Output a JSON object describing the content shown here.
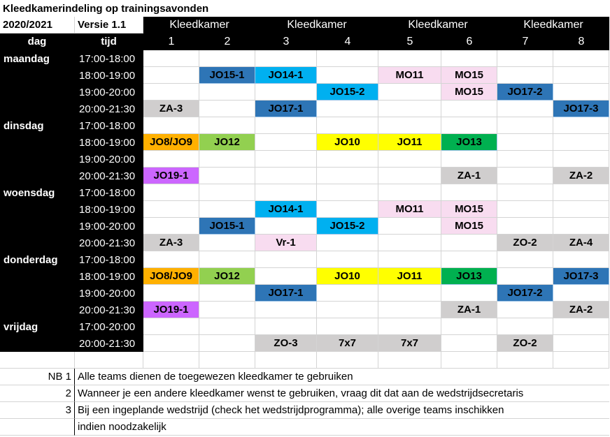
{
  "title": "Kleedkamerindeling op trainingsavonden",
  "season": "2020/2021",
  "version": "Versie 1.1",
  "col_day": "dag",
  "col_time": "tijd",
  "room_label": "Kleedkamer",
  "rooms": [
    "1",
    "2",
    "3",
    "4",
    "5",
    "6",
    "7",
    "8"
  ],
  "colors": {
    "grey": "#d0cece",
    "blue": "#2e75b6",
    "lightblue": "#00b0f0",
    "pink": "#f8dcf0",
    "orange": "#ffb000",
    "green_light": "#92d050",
    "yellow": "#ffff00",
    "green": "#00b050",
    "purple": "#cc66ff",
    "white": "#ffffff"
  },
  "schedule": [
    {
      "day": "maandag",
      "time": "17:00-18:00",
      "cells": []
    },
    {
      "day": "",
      "time": "18:00-19:00",
      "cells": [
        {
          "room": 2,
          "label": "JO15-1",
          "color": "blue"
        },
        {
          "room": 3,
          "label": "JO14-1",
          "color": "lightblue"
        },
        {
          "room": 5,
          "label": "MO11",
          "color": "pink"
        },
        {
          "room": 6,
          "label": "MO15",
          "color": "pink"
        }
      ]
    },
    {
      "day": "",
      "time": "19:00-20:00",
      "cells": [
        {
          "room": 4,
          "label": "JO15-2",
          "color": "lightblue"
        },
        {
          "room": 6,
          "label": "MO15",
          "color": "pink"
        },
        {
          "room": 7,
          "label": "JO17-2",
          "color": "blue"
        }
      ]
    },
    {
      "day": "",
      "time": "20:00-21:30",
      "cells": [
        {
          "room": 1,
          "label": "ZA-3",
          "color": "grey"
        },
        {
          "room": 3,
          "label": "JO17-1",
          "color": "blue"
        },
        {
          "room": 8,
          "label": "JO17-3",
          "color": "blue"
        }
      ]
    },
    {
      "day": "dinsdag",
      "time": "17:00-18:00",
      "cells": []
    },
    {
      "day": "",
      "time": "18:00-19:00",
      "cells": [
        {
          "room": 1,
          "label": "JO8/JO9",
          "color": "orange"
        },
        {
          "room": 2,
          "label": "JO12",
          "color": "green_light"
        },
        {
          "room": 4,
          "label": "JO10",
          "color": "yellow"
        },
        {
          "room": 5,
          "label": "JO11",
          "color": "yellow"
        },
        {
          "room": 6,
          "label": "JO13",
          "color": "green"
        }
      ]
    },
    {
      "day": "",
      "time": "19:00-20:00",
      "cells": []
    },
    {
      "day": "",
      "time": "20:00-21:30",
      "cells": [
        {
          "room": 1,
          "label": "JO19-1",
          "color": "purple"
        },
        {
          "room": 6,
          "label": "ZA-1",
          "color": "grey"
        },
        {
          "room": 8,
          "label": "ZA-2",
          "color": "grey"
        }
      ]
    },
    {
      "day": "woensdag",
      "time": "17:00-18:00",
      "cells": []
    },
    {
      "day": "",
      "time": "18:00-19:00",
      "cells": [
        {
          "room": 3,
          "label": "JO14-1",
          "color": "lightblue"
        },
        {
          "room": 5,
          "label": "MO11",
          "color": "pink"
        },
        {
          "room": 6,
          "label": "MO15",
          "color": "pink"
        }
      ]
    },
    {
      "day": "",
      "time": "19:00-20:00",
      "cells": [
        {
          "room": 2,
          "label": "JO15-1",
          "color": "blue"
        },
        {
          "room": 4,
          "label": "JO15-2",
          "color": "lightblue"
        },
        {
          "room": 6,
          "label": "MO15",
          "color": "pink"
        }
      ]
    },
    {
      "day": "",
      "time": "20:00-21:30",
      "cells": [
        {
          "room": 1,
          "label": "ZA-3",
          "color": "grey"
        },
        {
          "room": 3,
          "label": "Vr-1",
          "color": "pink"
        },
        {
          "room": 7,
          "label": "ZO-2",
          "color": "grey"
        },
        {
          "room": 8,
          "label": "ZA-4",
          "color": "grey"
        }
      ]
    },
    {
      "day": "donderdag",
      "time": "17:00-18:00",
      "cells": []
    },
    {
      "day": "",
      "time": "18:00-19:00",
      "cells": [
        {
          "room": 1,
          "label": "JO8/JO9",
          "color": "orange"
        },
        {
          "room": 2,
          "label": "JO12",
          "color": "green_light"
        },
        {
          "room": 4,
          "label": "JO10",
          "color": "yellow"
        },
        {
          "room": 5,
          "label": "JO11",
          "color": "yellow"
        },
        {
          "room": 6,
          "label": "JO13",
          "color": "green"
        },
        {
          "room": 8,
          "label": "JO17-3",
          "color": "blue"
        }
      ]
    },
    {
      "day": "",
      "time": "19:00-20:00",
      "cells": [
        {
          "room": 3,
          "label": "JO17-1",
          "color": "blue"
        },
        {
          "room": 7,
          "label": "JO17-2",
          "color": "blue"
        }
      ]
    },
    {
      "day": "",
      "time": "20:00-21:30",
      "cells": [
        {
          "room": 1,
          "label": "JO19-1",
          "color": "purple"
        },
        {
          "room": 6,
          "label": "ZA-1",
          "color": "grey"
        },
        {
          "room": 8,
          "label": "ZA-2",
          "color": "grey"
        }
      ]
    },
    {
      "day": "vrijdag",
      "time": "17:00-20:00",
      "cells": []
    },
    {
      "day": "",
      "time": "20:00-21:30",
      "cells": [
        {
          "room": 3,
          "label": "ZO-3",
          "color": "grey"
        },
        {
          "room": 4,
          "label": "7x7",
          "color": "grey"
        },
        {
          "room": 5,
          "label": "7x7",
          "color": "grey"
        },
        {
          "room": 7,
          "label": "ZO-2",
          "color": "grey"
        }
      ]
    }
  ],
  "notes": [
    {
      "num": "NB 1",
      "text": "Alle teams dienen de toegewezen kleedkamer te gebruiken"
    },
    {
      "num": "2",
      "text": "Wanneer je een andere kleedkamer wenst te gebruiken, vraag dit dat aan de wedstrijdsecretaris"
    },
    {
      "num": "3",
      "text": "Bij een ingeplande wedstrijd (check het wedstrijdprogramma); alle overige teams inschikken"
    },
    {
      "num": "",
      "text": "indien noodzakelijk"
    }
  ]
}
